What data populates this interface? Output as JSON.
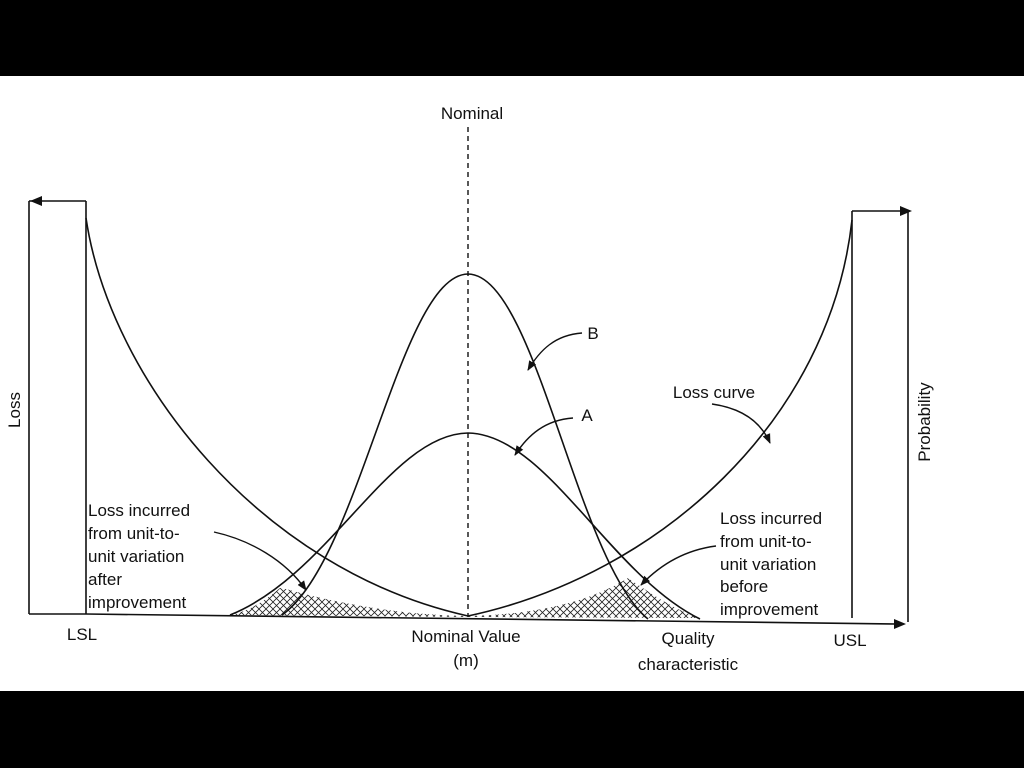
{
  "labels": {
    "nominal_top": "Nominal",
    "loss_axis": "Loss",
    "probability_axis": "Probability",
    "lsl": "LSL",
    "usl": "USL",
    "nominal_value_line1": "Nominal Value",
    "nominal_value_line2": "(m)",
    "quality_line1": "Quality",
    "quality_line2": "characteristic",
    "curve_b": "B",
    "curve_a": "A",
    "loss_curve": "Loss curve",
    "after_line1": "Loss incurred",
    "after_line2": "from unit-to-",
    "after_line3": "unit variation",
    "after_line4": "after",
    "after_line5": "improvement",
    "before_line1": "Loss incurred",
    "before_line2": "from unit-to-",
    "before_line3": "unit variation",
    "before_line4": "before",
    "before_line5": "improvement"
  }
}
